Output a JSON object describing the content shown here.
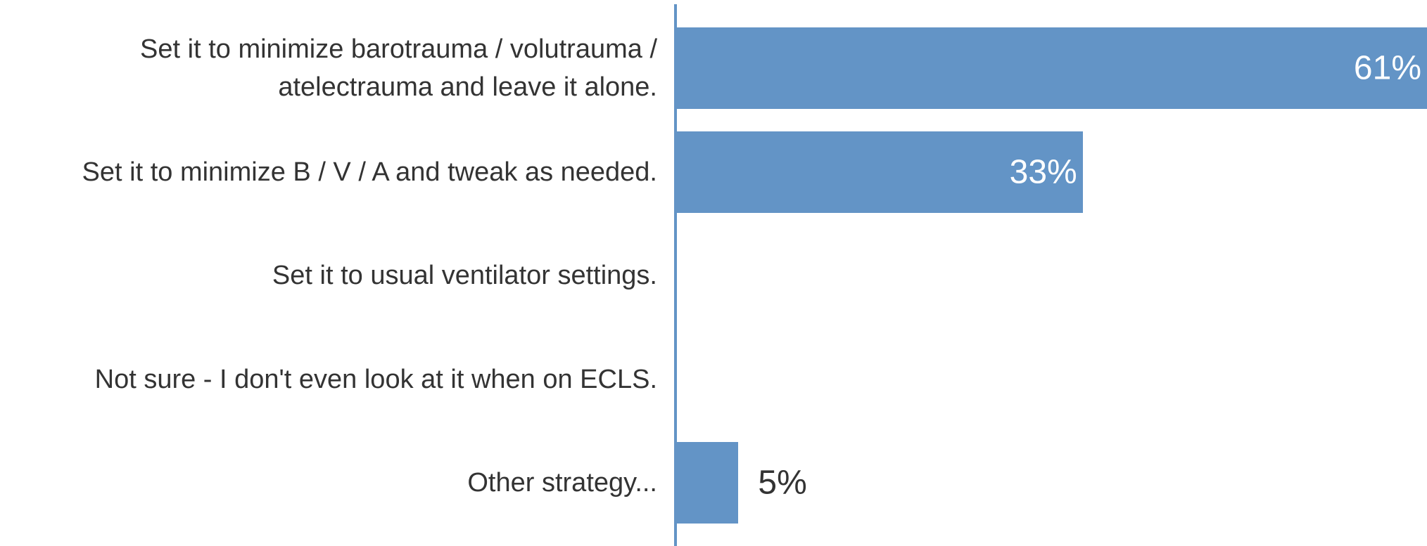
{
  "chart_data": {
    "type": "bar",
    "orientation": "horizontal",
    "categories": [
      "Set it to minimize barotrauma / volutrauma / atelectrauma and leave it alone.",
      "Set it to minimize B / V / A and tweak as needed.",
      "Set it to usual ventilator settings.",
      "Not sure - I don't even look at it when on ECLS.",
      "Other strategy..."
    ],
    "values": [
      61,
      33,
      0,
      0,
      5
    ],
    "value_labels": [
      "61%",
      "33%",
      null,
      null,
      "5%"
    ],
    "color": "#6394c6"
  }
}
